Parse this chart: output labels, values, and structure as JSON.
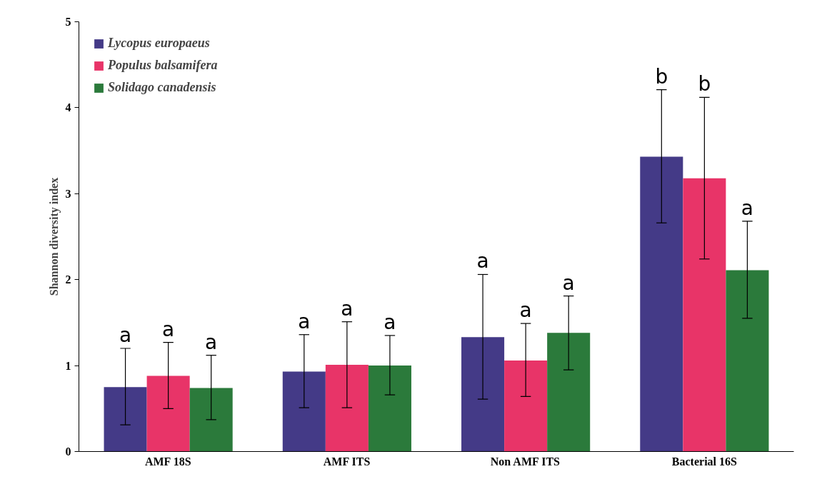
{
  "chart_data": {
    "type": "bar",
    "ylabel": "Shannon diversity index",
    "categories": [
      "AMF 18S",
      "AMF ITS",
      "Non AMF ITS",
      "Bacterial 16S"
    ],
    "series": [
      {
        "name": "Lycopus europaeus",
        "color": "#443a87",
        "values": [
          0.75,
          0.93,
          1.33,
          3.43
        ],
        "errors": [
          [
            0.31,
            1.2
          ],
          [
            0.51,
            1.36
          ],
          [
            0.61,
            2.06
          ],
          [
            2.66,
            4.21
          ]
        ]
      },
      {
        "name": "Populus balsamifera",
        "color": "#e83468",
        "values": [
          0.88,
          1.01,
          1.06,
          3.18
        ],
        "errors": [
          [
            0.5,
            1.27
          ],
          [
            0.51,
            1.51
          ],
          [
            0.64,
            1.49
          ],
          [
            2.24,
            4.12
          ]
        ]
      },
      {
        "name": "Solidago canadensis",
        "color": "#2b7a3b",
        "values": [
          0.74,
          1.0,
          1.38,
          2.11
        ],
        "errors": [
          [
            0.37,
            1.12
          ],
          [
            0.66,
            1.35
          ],
          [
            0.95,
            1.81
          ],
          [
            1.55,
            2.68
          ]
        ]
      }
    ],
    "annotations": [
      "a",
      "a",
      "a",
      "a",
      "a",
      "a",
      "a",
      "a",
      "a",
      "b",
      "b",
      "a"
    ],
    "ylim": [
      0,
      5
    ],
    "yticks": [
      0,
      1,
      2,
      3,
      4,
      5
    ],
    "grid": false,
    "legend": "top left"
  }
}
